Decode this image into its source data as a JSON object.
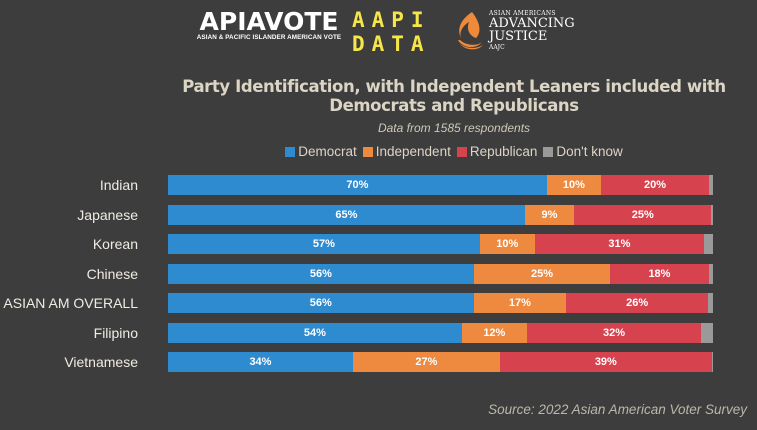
{
  "logos": {
    "apiavote_main": "APIAVOTE",
    "apiavote_sub": "ASIAN & PACIFIC ISLANDER AMERICAN VOTE",
    "aapi_data_line1": "AAPI",
    "aapi_data_line2": "DATA",
    "aaj_line1": "ASIAN AMERICANS",
    "aaj_line2": "ADVANCING",
    "aaj_line3": "JUSTICE",
    "aaj_line4": "AAJC"
  },
  "source": "Source: 2022 Asian American Voter Survey",
  "chart_data": {
    "type": "bar",
    "orientation": "horizontal",
    "stacked": true,
    "title": "Party Identification, with Independent Leaners included with Democrats and Republicans",
    "subtitle": "Data from 1585 respondents",
    "legend_position": "top",
    "categories": [
      "Indian",
      "Japanese",
      "Korean",
      "Chinese",
      "ASIAN AM OVERALL",
      "Filipino",
      "Vietnamese"
    ],
    "series": [
      {
        "name": "Democrat",
        "color": "#2e8bd0",
        "values": [
          70,
          65,
          57,
          56,
          56,
          54,
          34
        ],
        "labels": [
          "70%",
          "65%",
          "57%",
          "56%",
          "56%",
          "54%",
          "34%"
        ]
      },
      {
        "name": "Independent",
        "color": "#ee8a3f",
        "values": [
          10,
          9,
          10,
          25,
          17,
          12,
          27
        ],
        "labels": [
          "10%",
          "9%",
          "10%",
          "25%",
          "17%",
          "12%",
          "27%"
        ]
      },
      {
        "name": "Republican",
        "color": "#d6434e",
        "values": [
          20,
          25,
          31,
          18,
          26,
          32,
          39
        ],
        "labels": [
          "20%",
          "25%",
          "31%",
          "18%",
          "26%",
          "32%",
          "39%"
        ]
      },
      {
        "name": "Don't know",
        "color": "#9a9a9a",
        "values": [
          0.7,
          0.3,
          1.6,
          0.8,
          0.9,
          2.2,
          0.2
        ],
        "labels": [
          "",
          "",
          "",
          "",
          "",
          "",
          ""
        ]
      }
    ],
    "xlim": [
      0,
      100
    ],
    "grid": false
  }
}
